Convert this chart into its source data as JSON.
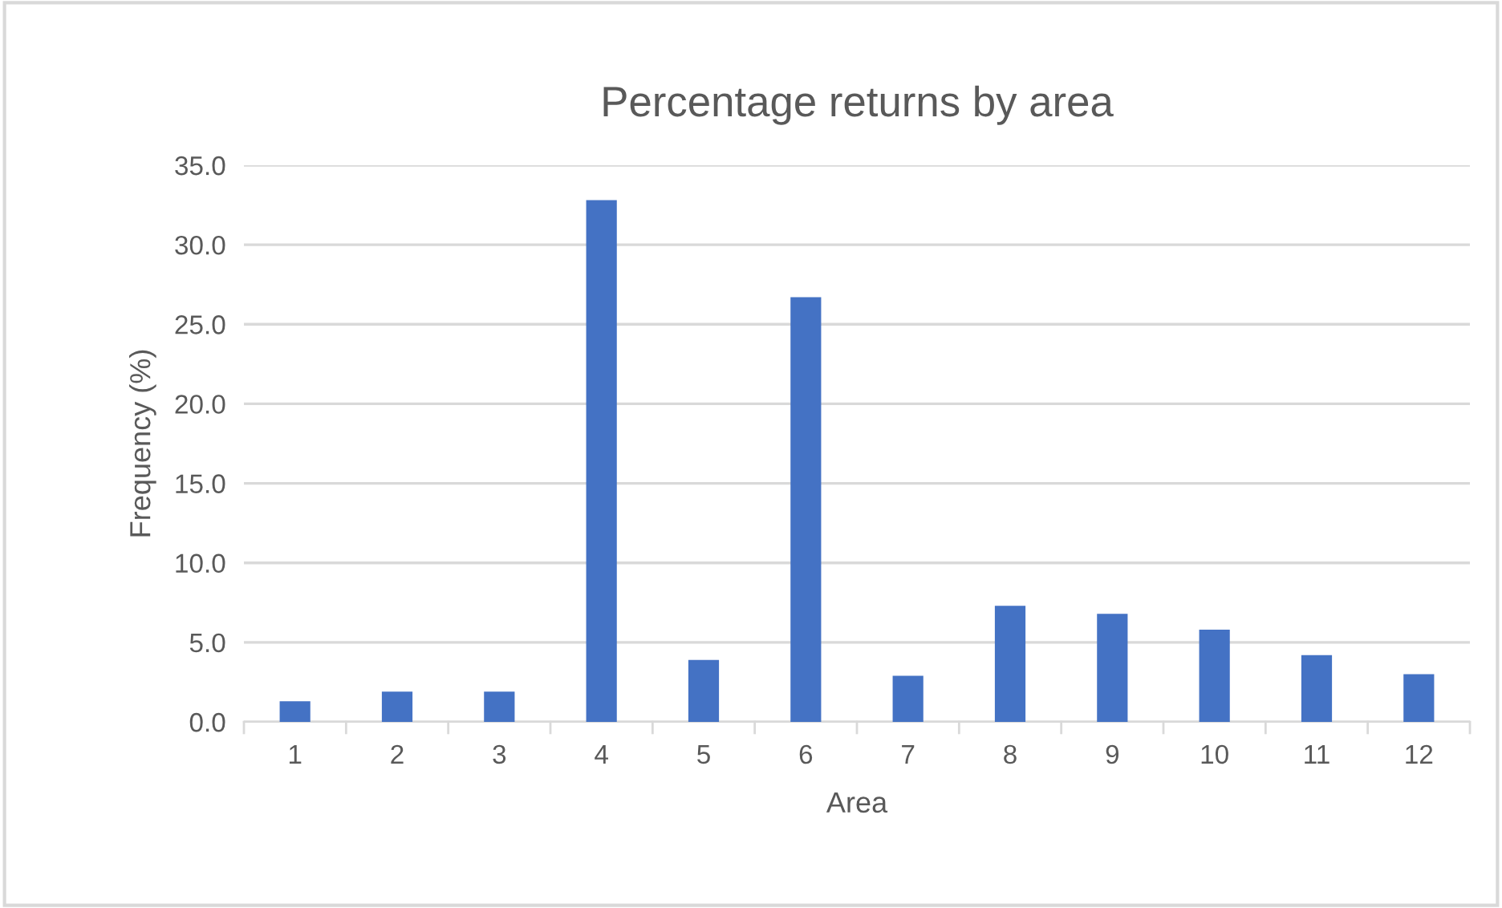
{
  "chart_data": {
    "type": "bar",
    "title": "Percentage returns by area",
    "xlabel": "Area",
    "ylabel": "Frequency (%)",
    "categories": [
      "1",
      "2",
      "3",
      "4",
      "5",
      "6",
      "7",
      "8",
      "9",
      "10",
      "11",
      "12"
    ],
    "values": [
      1.3,
      1.9,
      1.9,
      32.8,
      3.9,
      26.7,
      2.9,
      7.3,
      6.8,
      5.8,
      4.2,
      3.0
    ],
    "color": "#4472c4",
    "ylim": [
      0,
      35
    ],
    "yticks": [
      {
        "value": 0,
        "label": "0.0"
      },
      {
        "value": 5,
        "label": "5.0"
      },
      {
        "value": 10,
        "label": "10.0"
      },
      {
        "value": 15,
        "label": "15.0"
      },
      {
        "value": 20,
        "label": "20.0"
      },
      {
        "value": 25,
        "label": "25.0"
      },
      {
        "value": 30,
        "label": "30.0"
      },
      {
        "value": 35,
        "label": "35.0"
      }
    ],
    "grid": "y"
  }
}
